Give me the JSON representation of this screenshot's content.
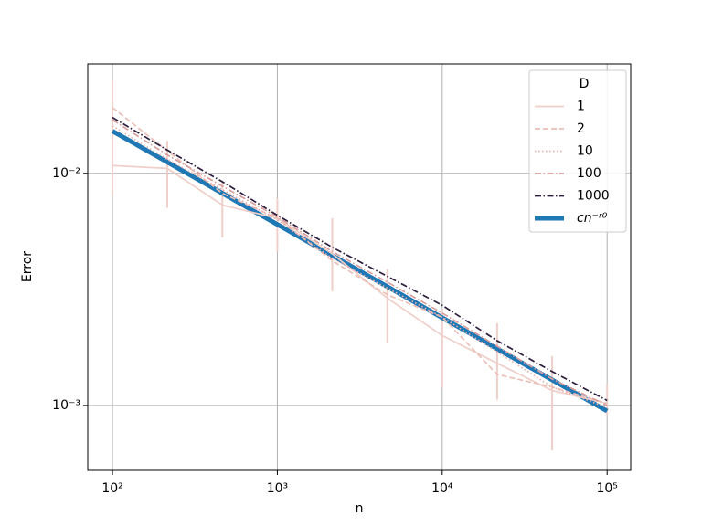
{
  "chart_data": {
    "type": "line",
    "log_x": true,
    "log_y": true,
    "grid": true,
    "xlabel": "n",
    "ylabel": "Error",
    "legend_title": "D",
    "legend_loc": "upper right",
    "x": [
      100,
      215,
      464,
      1000,
      2154,
      4642,
      10000,
      21544,
      46416,
      100000
    ],
    "xlim": [
      70.8,
      139000
    ],
    "ylim": [
      0.000525,
      0.0296
    ],
    "xticks": [
      {
        "value": 100,
        "label": "10²"
      },
      {
        "value": 1000,
        "label": "10³"
      },
      {
        "value": 10000,
        "label": "10⁴"
      },
      {
        "value": 100000,
        "label": "10⁵"
      }
    ],
    "yticks": [
      {
        "value": 0.001,
        "label": "10⁻³"
      },
      {
        "value": 0.01,
        "label": "10⁻²"
      }
    ],
    "series": [
      {
        "name": "1",
        "color": "#efcfc9",
        "linestyle": "solid",
        "values": [
          0.0108,
          0.0105,
          0.0073,
          0.0064,
          0.0045,
          0.0029,
          0.002,
          0.00152,
          0.00116,
          0.00102
        ],
        "lower": [
          0.008,
          0.0071,
          0.0053,
          0.0046,
          0.0031,
          0.00185,
          0.00119,
          0.00106,
          0.00064,
          0.00091
        ],
        "upper": [
          0.0252,
          0.0138,
          0.0093,
          0.0078,
          0.0064,
          0.00387,
          0.0026,
          0.00226,
          0.00163,
          0.00124
        ]
      },
      {
        "name": "2",
        "color": "#ebbfb8",
        "linestyle": "dashed",
        "values": [
          0.0192,
          0.0125,
          0.0082,
          0.0064,
          0.0042,
          0.003,
          0.0024,
          0.00136,
          0.0012,
          0.00102
        ]
      },
      {
        "name": "10",
        "color": "#e6b0ac",
        "linestyle": "dotted",
        "values": [
          0.016,
          0.0115,
          0.0085,
          0.0063,
          0.0043,
          0.0032,
          0.0024,
          0.0017,
          0.0012,
          0.00098
        ]
      },
      {
        "name": "100",
        "color": "#d89f9f",
        "linestyle": "dashdot",
        "values": [
          0.017,
          0.012,
          0.0088,
          0.0065,
          0.0046,
          0.0034,
          0.0025,
          0.0018,
          0.0013,
          0.001
        ]
      },
      {
        "name": "1000",
        "color": "#2d1e3e",
        "linestyle": "dashdot",
        "values": [
          0.0174,
          0.0126,
          0.0092,
          0.0066,
          0.0048,
          0.0036,
          0.0027,
          0.0019,
          0.0014,
          0.00105
        ]
      },
      {
        "name": "cn⁻ʳ⁰",
        "color": "#1f77b4",
        "linestyle": "solid",
        "width": 5,
        "italic": true,
        "x": [
          100,
          100000
        ],
        "values": [
          0.0152,
          0.000946
        ]
      }
    ]
  }
}
